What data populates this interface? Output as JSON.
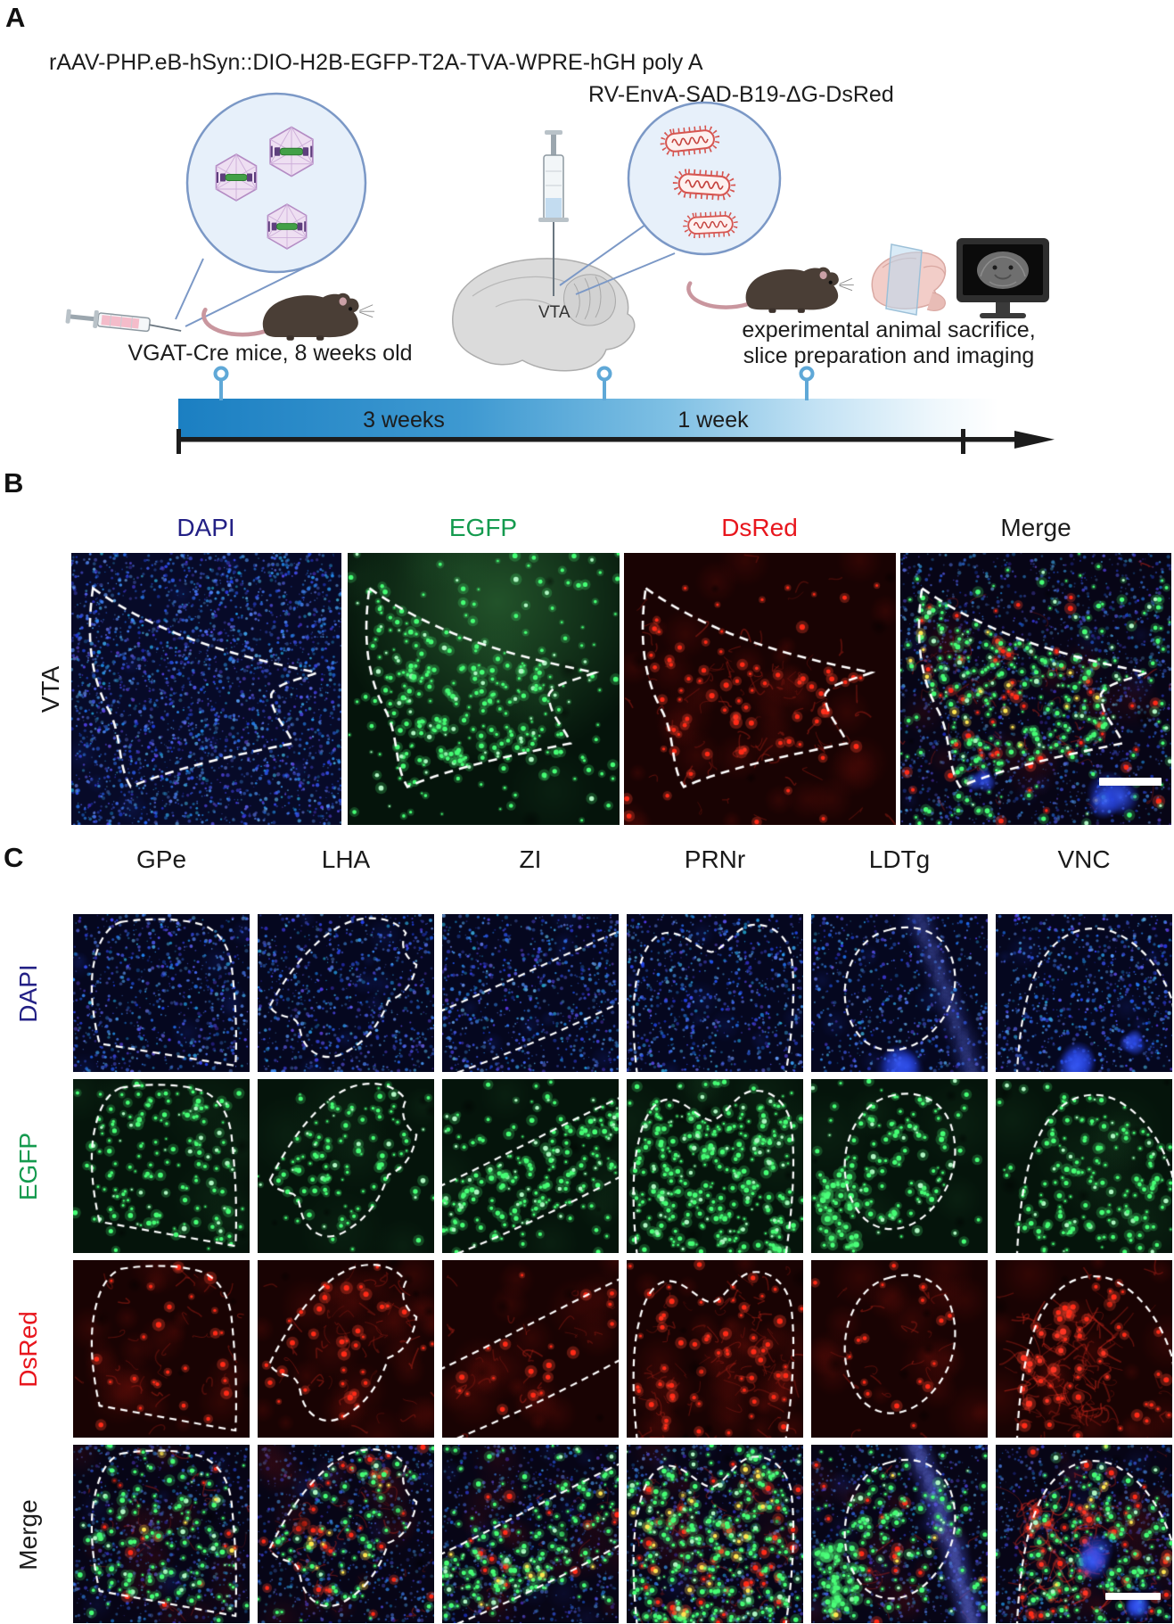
{
  "figure": {
    "panelA": {
      "label": "A",
      "aav_construct": "rAAV-PHP.eB-hSyn::DIO-H2B-EGFP-T2A-TVA-WPRE-hGH poly A",
      "rv_construct": "RV-EnvA-SAD-B19-ΔG-DsRed",
      "mouse_line": "VGAT-Cre mice, 8 weeks old",
      "injection_site": "VTA",
      "timeline": {
        "interval1": "3 weeks",
        "interval2": "1 week"
      },
      "endpoint_line1": "experimental animal sacrifice,",
      "endpoint_line2": "slice preparation and imaging",
      "accent_blue": "#5fa8d7"
    },
    "panelB": {
      "label": "B",
      "row_label": "VTA",
      "channels": [
        {
          "label": "DAPI",
          "color": "#232085"
        },
        {
          "label": "EGFP",
          "color": "#149a4e"
        },
        {
          "label": "DsRed",
          "color": "#e8161d"
        },
        {
          "label": "Merge",
          "color": "#1d1d1d"
        }
      ]
    },
    "panelC": {
      "label": "C",
      "regions": [
        "GPe",
        "LHA",
        "ZI",
        "PRNr",
        "LDTg",
        "VNC"
      ],
      "channels": [
        {
          "label": "DAPI",
          "color": "#232085"
        },
        {
          "label": "EGFP",
          "color": "#149a4e"
        },
        {
          "label": "DsRed",
          "color": "#e8161d"
        },
        {
          "label": "Merge",
          "color": "#1d1d1d"
        }
      ]
    }
  }
}
